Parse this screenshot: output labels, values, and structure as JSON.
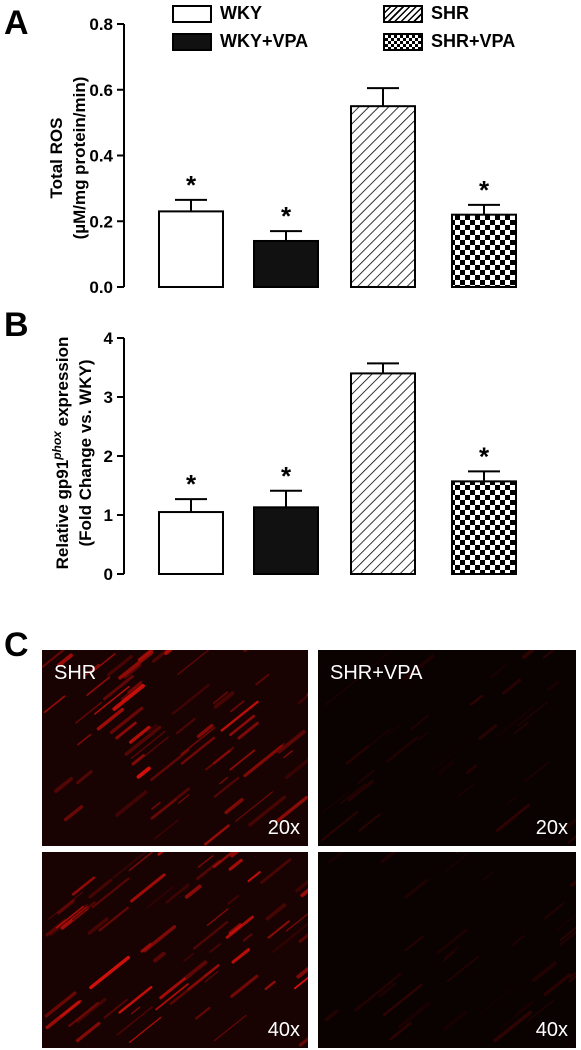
{
  "panels": {
    "a": "A",
    "b": "B",
    "c": "C"
  },
  "legend": [
    {
      "label": "WKY",
      "pattern": "white"
    },
    {
      "label": "WKY+VPA",
      "pattern": "black"
    },
    {
      "label": "SHR",
      "pattern": "hatch"
    },
    {
      "label": "SHR+VPA",
      "pattern": "checker"
    }
  ],
  "chart_data": [
    {
      "type": "bar",
      "categories": [
        "WKY",
        "WKY+VPA",
        "SHR",
        "SHR+VPA"
      ],
      "values": [
        0.23,
        0.14,
        0.55,
        0.22
      ],
      "errors": [
        0.035,
        0.03,
        0.055,
        0.03
      ],
      "significance": [
        "*",
        "*",
        "",
        "*"
      ],
      "ylabel_line1": "Total ROS",
      "ylabel_line2": "(µM/mg protein/min)",
      "ylim": [
        0,
        0.8
      ],
      "yticks": [
        "0.0",
        "0.2",
        "0.4",
        "0.6",
        "0.8"
      ],
      "tick_values": [
        0,
        0.2,
        0.4,
        0.6,
        0.8
      ]
    },
    {
      "type": "bar",
      "categories": [
        "WKY",
        "WKY+VPA",
        "SHR",
        "SHR+VPA"
      ],
      "values": [
        1.05,
        1.13,
        3.4,
        1.57
      ],
      "errors": [
        0.22,
        0.28,
        0.17,
        0.17
      ],
      "significance": [
        "*",
        "*",
        "",
        "*"
      ],
      "ylabel_line1_pre": "Relative gp91",
      "ylabel_line1_sup": "phox",
      "ylabel_line1_post": " expression",
      "ylabel_line2": "(Fold Change vs. WKY)",
      "ylim": [
        0,
        4
      ],
      "yticks": [
        "0",
        "1",
        "2",
        "3",
        "4"
      ],
      "tick_values": [
        0,
        1,
        2,
        3,
        4
      ]
    }
  ],
  "micrographs": [
    {
      "label": "SHR",
      "mag": "20x",
      "intensity": "high"
    },
    {
      "label": "SHR+VPA",
      "mag": "20x",
      "intensity": "low"
    },
    {
      "label": "",
      "mag": "40x",
      "intensity": "high"
    },
    {
      "label": "",
      "mag": "40x",
      "intensity": "low"
    }
  ]
}
